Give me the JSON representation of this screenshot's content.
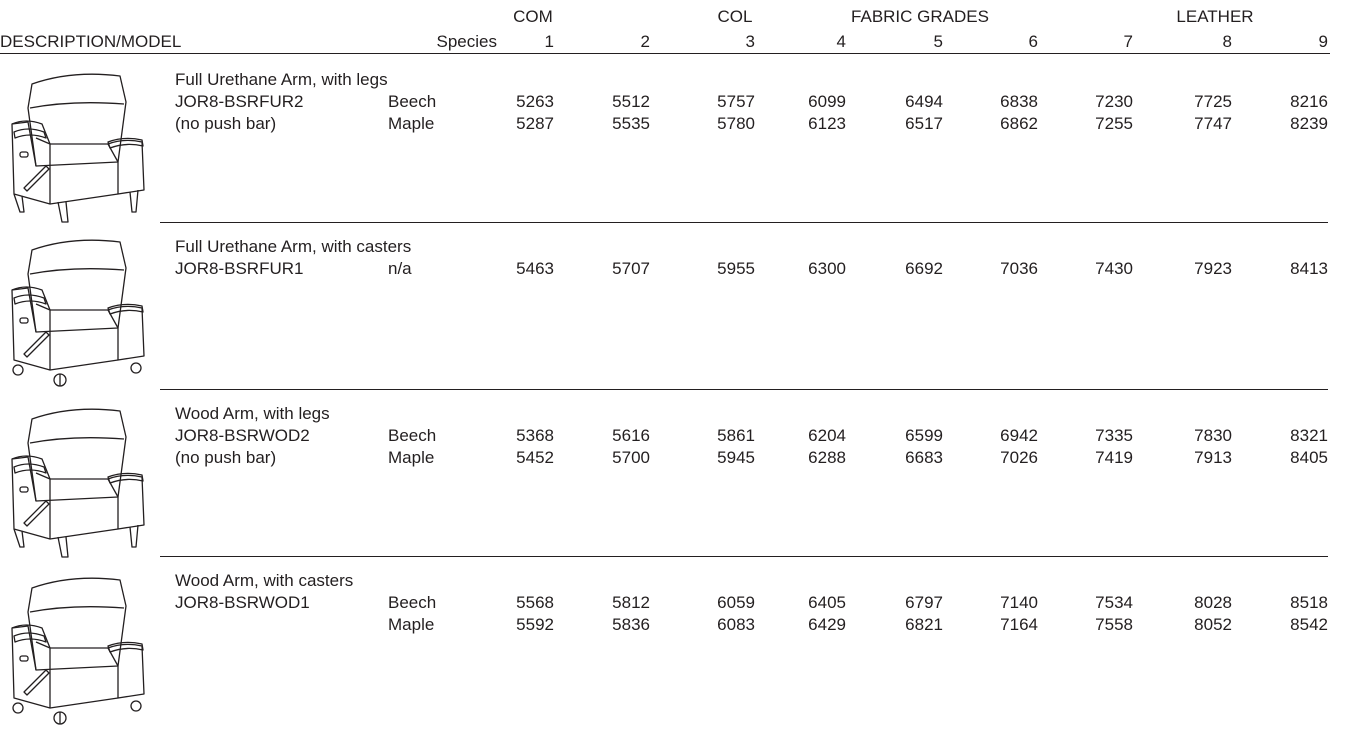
{
  "header": {
    "groups": [
      "COM",
      "COL",
      "FABRIC GRADES",
      "LEATHER"
    ],
    "columns": [
      "DESCRIPTION/MODEL",
      "Species",
      "1",
      "2",
      "3",
      "4",
      "5",
      "6",
      "7",
      "8",
      "9"
    ]
  },
  "sections": [
    {
      "description": "Full Urethane Arm, with legs",
      "model": "JOR8-BSRFUR2",
      "note": "(no push bar)",
      "rows": [
        {
          "species": "Beech",
          "prices": [
            "5263",
            "5512",
            "5757",
            "6099",
            "6494",
            "6838",
            "7230",
            "7725",
            "8216"
          ]
        },
        {
          "species": "Maple",
          "prices": [
            "5287",
            "5535",
            "5780",
            "6123",
            "6517",
            "6862",
            "7255",
            "7747",
            "8239"
          ]
        }
      ]
    },
    {
      "description": "Full Urethane Arm, with casters",
      "model": "JOR8-BSRFUR1",
      "rows": [
        {
          "species": "n/a",
          "prices": [
            "5463",
            "5707",
            "5955",
            "6300",
            "6692",
            "7036",
            "7430",
            "7923",
            "8413"
          ]
        }
      ]
    },
    {
      "description": "Wood Arm, with legs",
      "model": "JOR8-BSRWOD2",
      "note": "(no push bar)",
      "rows": [
        {
          "species": "Beech",
          "prices": [
            "5368",
            "5616",
            "5861",
            "6204",
            "6599",
            "6942",
            "7335",
            "7830",
            "8321"
          ]
        },
        {
          "species": "Maple",
          "prices": [
            "5452",
            "5700",
            "5945",
            "6288",
            "6683",
            "7026",
            "7419",
            "7913",
            "8405"
          ]
        }
      ]
    },
    {
      "description": "Wood Arm, with casters",
      "model": "JOR8-BSRWOD1",
      "rows": [
        {
          "species": "Beech",
          "prices": [
            "5568",
            "5812",
            "6059",
            "6405",
            "6797",
            "7140",
            "7534",
            "8028",
            "8518"
          ]
        },
        {
          "species": "Maple",
          "prices": [
            "5592",
            "5836",
            "6083",
            "6429",
            "6821",
            "7164",
            "7558",
            "8052",
            "8542"
          ]
        }
      ]
    }
  ]
}
